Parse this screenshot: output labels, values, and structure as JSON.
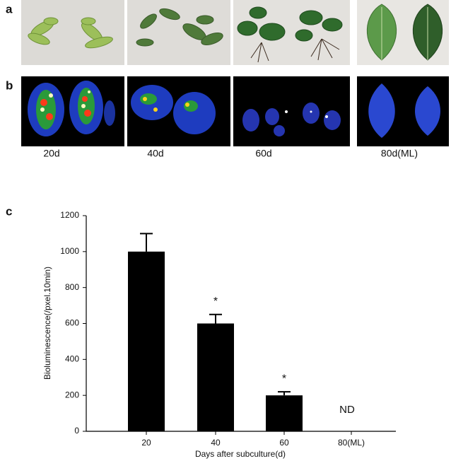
{
  "panels": {
    "a": "a",
    "b": "b",
    "c": "c"
  },
  "captions": [
    "20d",
    "40d",
    "60d",
    "80d(ML)"
  ],
  "chart_data": {
    "type": "bar",
    "y_label": "Bioluminescence(/pxel.10min)",
    "x_label": "Days after subculture(d)",
    "categories": [
      "20",
      "40",
      "60",
      "80(ML)"
    ],
    "values": [
      1000,
      600,
      200,
      null
    ],
    "errors": [
      100,
      50,
      20,
      null
    ],
    "color": "#000000",
    "ylim": [
      0,
      1200
    ],
    "yticks": [
      0,
      200,
      400,
      600,
      800,
      1000,
      1200
    ],
    "annotations": [
      {
        "text": "*",
        "category": 1
      },
      {
        "text": "*",
        "category": 2
      },
      {
        "text": "ND",
        "category": 3
      }
    ]
  }
}
